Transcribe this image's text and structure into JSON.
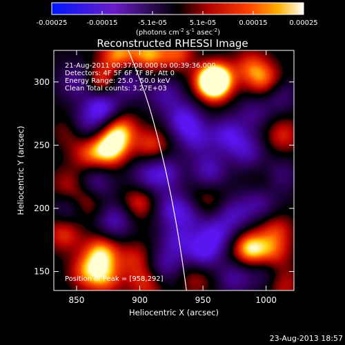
{
  "colorbar": {
    "tick_labels": [
      "-0.00025",
      "-0.00015",
      "-5.1e-05",
      "5.1e-05",
      "0.00015",
      "0.00025"
    ],
    "unit_label": "(photons cm",
    "unit_sup1": "-2",
    "unit_mid": " s",
    "unit_sup2": "-1",
    "unit_mid2": " asec",
    "unit_sup3": "-2",
    "unit_close": ")",
    "range": [
      -0.00025,
      0.00025
    ]
  },
  "chart_data": {
    "type": "heatmap",
    "title": "Reconstructed RHESSI Image",
    "xlabel": "Heliocentric X (arcsec)",
    "ylabel": "Heliocentric Y (arcsec)",
    "xlim": [
      832,
      1022
    ],
    "ylim": [
      135,
      325
    ],
    "x_ticks": [
      850,
      900,
      950,
      1000
    ],
    "y_ticks": [
      150,
      200,
      250,
      300
    ],
    "info_lines": [
      "21-Aug-2011 00:37:08.000 to 00:39:36.000",
      "Detectors: 4F 5F 6F 7F 8F, Att 0",
      "Energy Range: 25.0 - 50.0 keV",
      "Clean     Total counts: 3.27E+03"
    ],
    "peak_label": "Position of Peak = [958,292]",
    "peak": [
      958,
      292
    ],
    "limb_curve": [
      [
        891,
        325
      ],
      [
        905,
        290
      ],
      [
        916,
        250
      ],
      [
        925,
        210
      ],
      [
        932,
        170
      ],
      [
        937,
        135
      ]
    ],
    "sources": [
      {
        "x": 958,
        "y": 305,
        "v": 1.0
      },
      {
        "x": 959,
        "y": 298,
        "v": 0.9
      },
      {
        "x": 870,
        "y": 300,
        "v": 0.6
      },
      {
        "x": 883,
        "y": 322,
        "v": 0.7
      },
      {
        "x": 907,
        "y": 322,
        "v": 0.7
      },
      {
        "x": 930,
        "y": 323,
        "v": 0.55
      },
      {
        "x": 1000,
        "y": 300,
        "v": 0.6
      },
      {
        "x": 988,
        "y": 312,
        "v": 0.5
      },
      {
        "x": 1013,
        "y": 258,
        "v": 0.45
      },
      {
        "x": 877,
        "y": 247,
        "v": 0.85
      },
      {
        "x": 884,
        "y": 262,
        "v": 0.7
      },
      {
        "x": 860,
        "y": 243,
        "v": 0.5
      },
      {
        "x": 847,
        "y": 262,
        "v": 0.45
      },
      {
        "x": 910,
        "y": 250,
        "v": 0.5
      },
      {
        "x": 900,
        "y": 205,
        "v": 0.5
      },
      {
        "x": 858,
        "y": 205,
        "v": 0.45
      },
      {
        "x": 843,
        "y": 218,
        "v": 0.35
      },
      {
        "x": 840,
        "y": 180,
        "v": 0.5
      },
      {
        "x": 870,
        "y": 165,
        "v": 0.75
      },
      {
        "x": 858,
        "y": 150,
        "v": 0.55
      },
      {
        "x": 873,
        "y": 145,
        "v": 0.55
      },
      {
        "x": 897,
        "y": 160,
        "v": 0.4
      },
      {
        "x": 905,
        "y": 140,
        "v": 0.45
      },
      {
        "x": 987,
        "y": 168,
        "v": 0.85
      },
      {
        "x": 1005,
        "y": 163,
        "v": 0.5
      },
      {
        "x": 1008,
        "y": 182,
        "v": 0.45
      },
      {
        "x": 1013,
        "y": 140,
        "v": 0.4
      },
      {
        "x": 945,
        "y": 145,
        "v": 0.35
      },
      {
        "x": 952,
        "y": 205,
        "v": 0.35
      },
      {
        "x": 1000,
        "y": 220,
        "v": 0.3
      },
      {
        "x": 870,
        "y": 280,
        "v": -0.9
      },
      {
        "x": 855,
        "y": 265,
        "v": -0.6
      },
      {
        "x": 890,
        "y": 300,
        "v": -0.55
      },
      {
        "x": 920,
        "y": 290,
        "v": -0.5
      },
      {
        "x": 935,
        "y": 270,
        "v": -0.75
      },
      {
        "x": 945,
        "y": 255,
        "v": -0.55
      },
      {
        "x": 970,
        "y": 258,
        "v": -0.7
      },
      {
        "x": 985,
        "y": 245,
        "v": -0.55
      },
      {
        "x": 955,
        "y": 230,
        "v": -0.6
      },
      {
        "x": 920,
        "y": 228,
        "v": -0.6
      },
      {
        "x": 905,
        "y": 225,
        "v": -0.45
      },
      {
        "x": 925,
        "y": 200,
        "v": -0.6
      },
      {
        "x": 940,
        "y": 195,
        "v": -0.45
      },
      {
        "x": 960,
        "y": 180,
        "v": -0.65
      },
      {
        "x": 975,
        "y": 195,
        "v": -0.55
      },
      {
        "x": 995,
        "y": 205,
        "v": -0.5
      },
      {
        "x": 1010,
        "y": 225,
        "v": -0.45
      },
      {
        "x": 1010,
        "y": 290,
        "v": -0.45
      },
      {
        "x": 950,
        "y": 165,
        "v": -0.75
      },
      {
        "x": 930,
        "y": 175,
        "v": -0.55
      },
      {
        "x": 920,
        "y": 155,
        "v": -0.5
      },
      {
        "x": 880,
        "y": 190,
        "v": -0.6
      },
      {
        "x": 865,
        "y": 220,
        "v": -0.5
      },
      {
        "x": 845,
        "y": 200,
        "v": -0.4
      },
      {
        "x": 850,
        "y": 300,
        "v": -0.5
      },
      {
        "x": 990,
        "y": 275,
        "v": -0.4
      },
      {
        "x": 1000,
        "y": 150,
        "v": -0.4
      },
      {
        "x": 975,
        "y": 145,
        "v": -0.5
      },
      {
        "x": 955,
        "y": 312,
        "v": -0.3
      }
    ]
  },
  "footer": {
    "timestamp": "23-Aug-2013 18:57"
  }
}
